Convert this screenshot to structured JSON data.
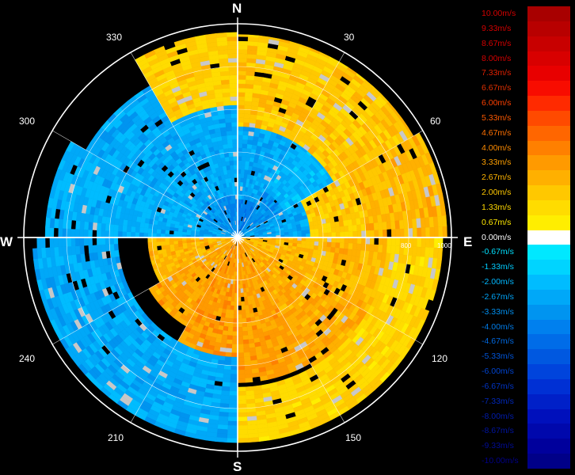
{
  "chart_data": {
    "type": "heatmap",
    "title": "",
    "projection": "polar",
    "orientation": "north-up, clockwise",
    "cardinal_labels": {
      "north": "N",
      "east": "E",
      "south": "S",
      "west": "W"
    },
    "azimuth_ticks": [
      "30",
      "60",
      "120",
      "150",
      "210",
      "240",
      "300",
      "330"
    ],
    "range_ticks": [
      "800",
      "1000"
    ],
    "range_max": 1000,
    "range_rings": [
      200,
      400,
      600,
      800,
      1000
    ],
    "grid": true,
    "legend_position": "right",
    "colorbar": {
      "unit": "m/s",
      "labels": [
        "10.00m/s",
        "9.33m/s",
        "8.67m/s",
        "8.00m/s",
        "7.33m/s",
        "6.67m/s",
        "6.00m/s",
        "5.33m/s",
        "4.67m/s",
        "4.00m/s",
        "3.33m/s",
        "2.67m/s",
        "2.00m/s",
        "1.33m/s",
        "0.67m/s",
        "0.00m/s",
        "-0.67m/s",
        "-1.33m/s",
        "-2.00m/s",
        "-2.67m/s",
        "-3.33m/s",
        "-4.00m/s",
        "-4.67m/s",
        "-5.33m/s",
        "-6.00m/s",
        "-6.67m/s",
        "-7.33m/s",
        "-8.00m/s",
        "-8.67m/s",
        "-9.33m/s",
        "-10.00m/s"
      ],
      "swatch_colors": [
        "#a80000",
        "#b80000",
        "#c80000",
        "#d80000",
        "#e80000",
        "#f80c00",
        "#ff2a00",
        "#ff4a00",
        "#ff6600",
        "#ff8000",
        "#ff9a00",
        "#ffb000",
        "#ffc800",
        "#ffdc00",
        "#ffee00",
        "#ffffff",
        "#00e8ff",
        "#00d4ff",
        "#00bcff",
        "#00a8f8",
        "#0094f0",
        "#0080ee",
        "#006ce8",
        "#0058e0",
        "#0044dc",
        "#0030d4",
        "#0020c8",
        "#0010bc",
        "#0008ac",
        "#00009c",
        "#000088"
      ],
      "label_colors": [
        "#d40000",
        "#d40000",
        "#d40000",
        "#d40000",
        "#e02000",
        "#e03000",
        "#ff4000",
        "#ff5a00",
        "#ff7000",
        "#ff8c00",
        "#ffa000",
        "#ffb400",
        "#ffc800",
        "#ffd800",
        "#ffe800",
        "#ffffff",
        "#00e0ff",
        "#00ccff",
        "#00b8ff",
        "#00a4f8",
        "#0090f0",
        "#007ce8",
        "#0068e0",
        "#0054d8",
        "#0044d0",
        "#0034c4",
        "#0028b8",
        "#001cac",
        "#0014a0",
        "#000c94",
        "#000088"
      ]
    },
    "radial_velocity_sectors": [
      {
        "az_from": 0,
        "az_to": 30,
        "r_from": 0,
        "r_to": 180,
        "value": -4.0
      },
      {
        "az_from": 30,
        "az_to": 60,
        "r_from": 0,
        "r_to": 250,
        "value": -3.3
      },
      {
        "az_from": 60,
        "az_to": 90,
        "r_from": 0,
        "r_to": 340,
        "value": -2.7
      },
      {
        "az_from": 90,
        "az_to": 120,
        "r_from": 0,
        "r_to": 700,
        "value": 2.4
      },
      {
        "az_from": 120,
        "az_to": 150,
        "r_from": 0,
        "r_to": 730,
        "value": 2.8
      },
      {
        "az_from": 150,
        "az_to": 180,
        "r_from": 0,
        "r_to": 680,
        "value": 3.1
      },
      {
        "az_from": 180,
        "az_to": 210,
        "r_from": 0,
        "r_to": 560,
        "value": 3.3
      },
      {
        "az_from": 210,
        "az_to": 240,
        "r_from": 0,
        "r_to": 480,
        "value": 3.0
      },
      {
        "az_from": 240,
        "az_to": 270,
        "r_from": 0,
        "r_to": 420,
        "value": 2.5
      },
      {
        "az_from": 270,
        "az_to": 300,
        "r_from": 0,
        "r_to": 200,
        "value": -2.7
      },
      {
        "az_from": 300,
        "az_to": 330,
        "r_from": 0,
        "r_to": 220,
        "value": -3.2
      },
      {
        "az_from": 330,
        "az_to": 360,
        "r_from": 0,
        "r_to": 200,
        "value": -3.6
      },
      {
        "az_from": 0,
        "az_to": 30,
        "r_from": 180,
        "r_to": 520,
        "value": -2.7
      },
      {
        "az_from": 30,
        "az_to": 60,
        "r_from": 250,
        "r_to": 560,
        "value": -2.2
      },
      {
        "az_from": 60,
        "az_to": 90,
        "r_from": 340,
        "r_to": 600,
        "value": 1.8
      },
      {
        "az_from": 270,
        "az_to": 300,
        "r_from": 200,
        "r_to": 900,
        "value": -2.4
      },
      {
        "az_from": 300,
        "az_to": 330,
        "r_from": 220,
        "r_to": 820,
        "value": -2.6
      },
      {
        "az_from": 330,
        "az_to": 360,
        "r_from": 200,
        "r_to": 620,
        "value": -2.5
      },
      {
        "az_from": 180,
        "az_to": 270,
        "r_from": 560,
        "r_to": 960,
        "value": -2.6
      },
      {
        "az_from": 0,
        "az_to": 60,
        "r_from": 520,
        "r_to": 950,
        "value": 2.0
      },
      {
        "az_from": 60,
        "az_to": 90,
        "r_from": 600,
        "r_to": 980,
        "value": 2.4
      },
      {
        "az_from": 330,
        "az_to": 360,
        "r_from": 620,
        "r_to": 960,
        "value": 1.7
      },
      {
        "az_from": 90,
        "az_to": 180,
        "r_from": 700,
        "r_to": 960,
        "value": 1.6
      }
    ]
  }
}
